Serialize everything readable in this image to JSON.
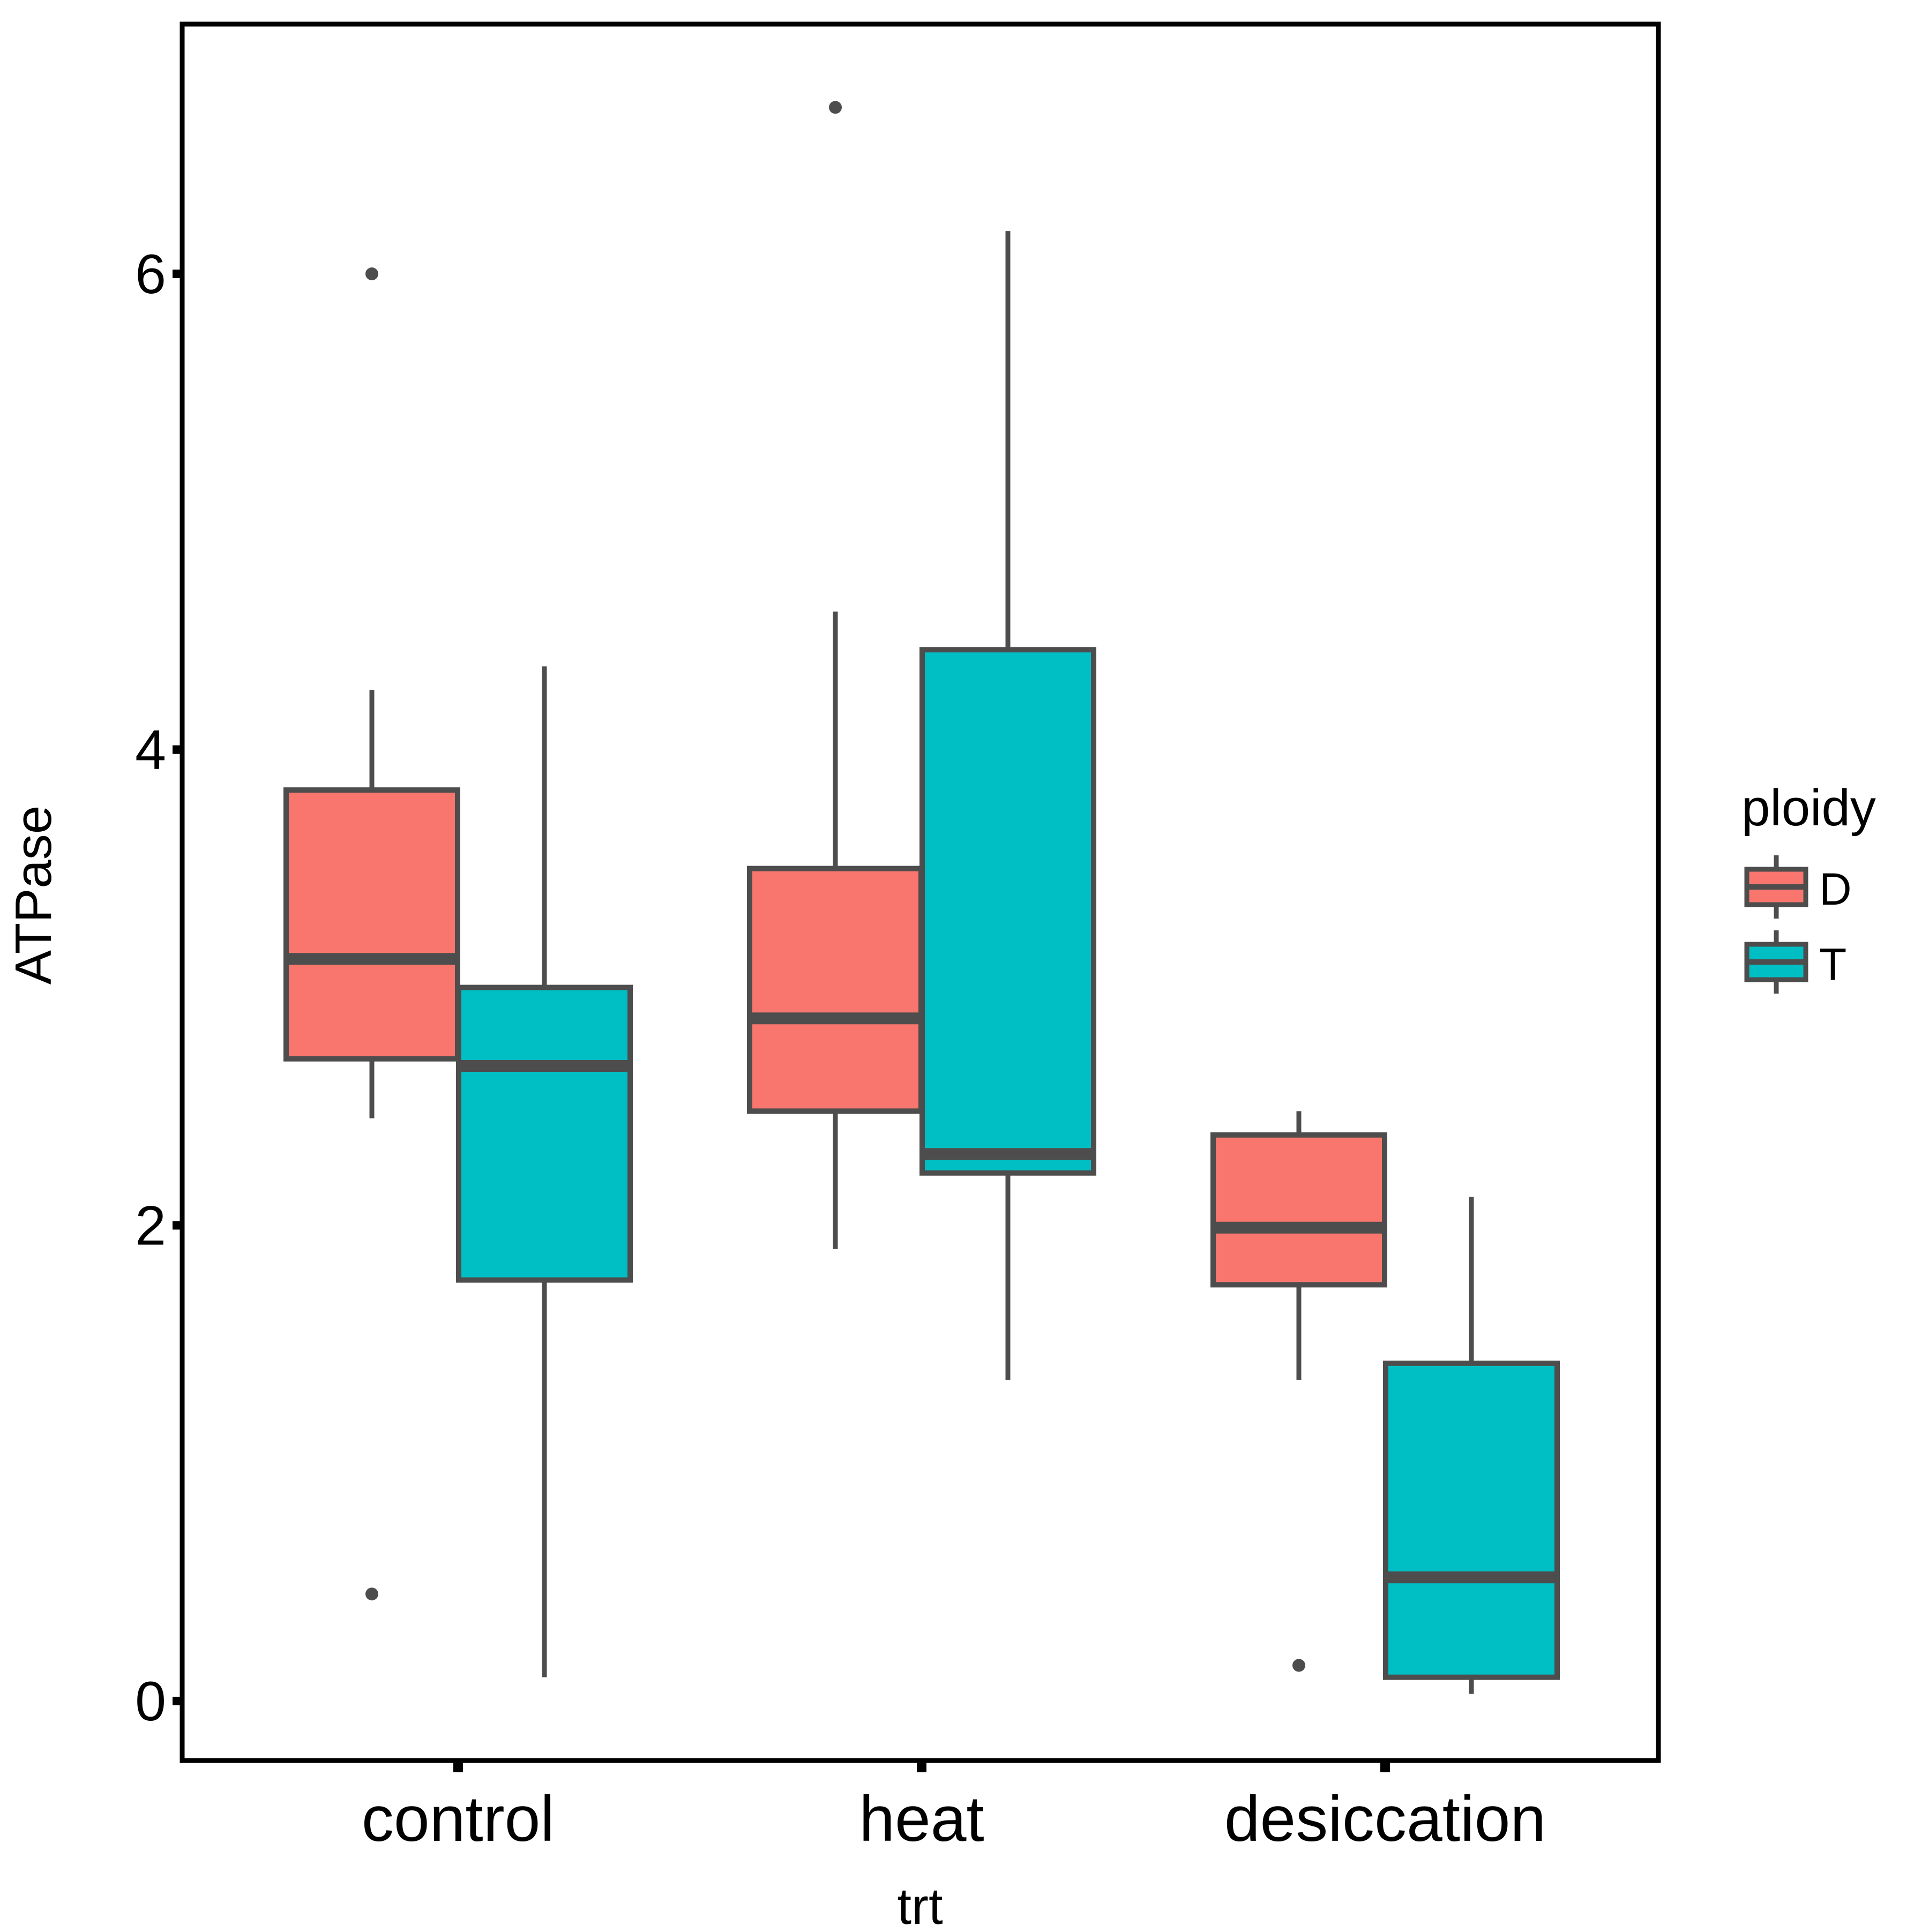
{
  "chart_data": {
    "type": "boxplot",
    "xlabel": "trt",
    "ylabel": "ATPase",
    "categories": [
      "control",
      "heat",
      "desiccation"
    ],
    "ylim": [
      -0.25,
      7.05
    ],
    "yticks": [
      0,
      2,
      4,
      6
    ],
    "legend": {
      "title": "ploidy",
      "position": "right",
      "entries": [
        {
          "label": "D",
          "color": "#F8766D"
        },
        {
          "label": "T",
          "color": "#00BFC4"
        }
      ]
    },
    "series": [
      {
        "name": "D",
        "color": "#F8766D",
        "boxes": [
          {
            "category": "control",
            "whisker_low": 2.45,
            "q1": 2.7,
            "median": 3.12,
            "q3": 3.83,
            "whisker_high": 4.25,
            "outliers": [
              6.0,
              0.45
            ]
          },
          {
            "category": "heat",
            "whisker_low": 1.9,
            "q1": 2.48,
            "median": 2.87,
            "q3": 3.5,
            "whisker_high": 4.58,
            "outliers": [
              6.7
            ]
          },
          {
            "category": "desiccation",
            "whisker_low": 1.35,
            "q1": 1.75,
            "median": 1.99,
            "q3": 2.38,
            "whisker_high": 2.48,
            "outliers": [
              0.15
            ]
          }
        ]
      },
      {
        "name": "T",
        "color": "#00BFC4",
        "boxes": [
          {
            "category": "control",
            "whisker_low": 0.1,
            "q1": 1.77,
            "median": 2.67,
            "q3": 3.0,
            "whisker_high": 4.35,
            "outliers": []
          },
          {
            "category": "heat",
            "whisker_low": 1.35,
            "q1": 2.22,
            "median": 2.3,
            "q3": 4.42,
            "whisker_high": 6.18,
            "outliers": []
          },
          {
            "category": "desiccation",
            "whisker_low": 0.03,
            "q1": 0.1,
            "median": 0.52,
            "q3": 1.42,
            "whisker_high": 2.12,
            "outliers": []
          }
        ]
      }
    ]
  },
  "colors": {
    "outline": "#4D4D4D",
    "panel_border": "#000000",
    "D": "#F8766D",
    "T": "#00BFC4"
  }
}
